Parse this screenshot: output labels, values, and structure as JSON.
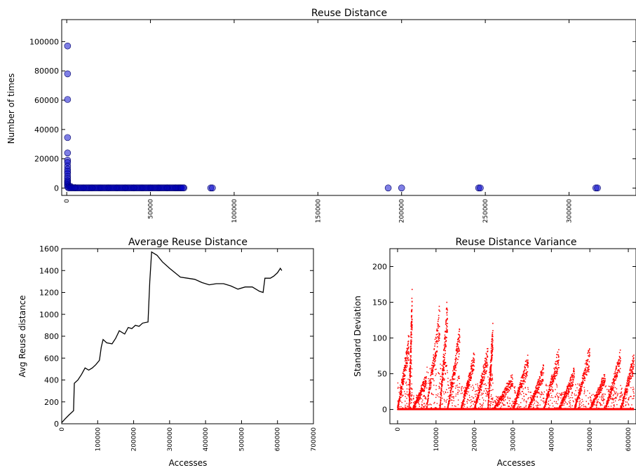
{
  "chart_data": [
    {
      "type": "scatter",
      "title": "Reuse Distance",
      "xlabel": "",
      "ylabel": "Number of times",
      "xlim": [
        -3000,
        340000
      ],
      "ylim": [
        -5000,
        115000
      ],
      "xticks": [
        0,
        50000,
        100000,
        150000,
        200000,
        250000,
        300000
      ],
      "yticks": [
        0,
        20000,
        40000,
        60000,
        80000,
        100000
      ],
      "grid": false,
      "marker_color": "#0000cc",
      "points": [
        {
          "x": 500,
          "y": 97000
        },
        {
          "x": 500,
          "y": 78000
        },
        {
          "x": 500,
          "y": 60500
        },
        {
          "x": 500,
          "y": 34500
        },
        {
          "x": 500,
          "y": 24000
        },
        {
          "x": 500,
          "y": 19000
        },
        {
          "x": 500,
          "y": 17500
        },
        {
          "x": 500,
          "y": 15000
        },
        {
          "x": 500,
          "y": 13000
        },
        {
          "x": 500,
          "y": 11500
        },
        {
          "x": 500,
          "y": 10000
        },
        {
          "x": 500,
          "y": 8000
        },
        {
          "x": 500,
          "y": 6500
        },
        {
          "x": 500,
          "y": 5000
        },
        {
          "x": 500,
          "y": 4000
        },
        {
          "x": 500,
          "y": 3000
        },
        {
          "x": 500,
          "y": 2000
        },
        {
          "x": 500,
          "y": 1000
        },
        {
          "x": 1500,
          "y": 1500
        },
        {
          "x": 2500,
          "y": 1000
        },
        {
          "x": 5000,
          "y": 300
        },
        {
          "x": 10000,
          "y": 200
        },
        {
          "x": 15000,
          "y": 200
        },
        {
          "x": 20000,
          "y": 200
        },
        {
          "x": 25000,
          "y": 200
        },
        {
          "x": 30000,
          "y": 150
        },
        {
          "x": 35000,
          "y": 150
        },
        {
          "x": 40000,
          "y": 150
        },
        {
          "x": 45000,
          "y": 150
        },
        {
          "x": 50000,
          "y": 150
        },
        {
          "x": 55000,
          "y": 150
        },
        {
          "x": 60000,
          "y": 150
        },
        {
          "x": 65000,
          "y": 150
        },
        {
          "x": 68000,
          "y": 150
        },
        {
          "x": 70000,
          "y": 150
        },
        {
          "x": 86000,
          "y": 100
        },
        {
          "x": 87000,
          "y": 100
        },
        {
          "x": 192000,
          "y": 100
        },
        {
          "x": 200000,
          "y": 100
        },
        {
          "x": 246000,
          "y": 100
        },
        {
          "x": 247000,
          "y": 100
        },
        {
          "x": 316000,
          "y": 100
        },
        {
          "x": 317000,
          "y": 100
        }
      ]
    },
    {
      "type": "line",
      "title": "Average Reuse Distance",
      "xlabel": "Accesses",
      "ylabel": "Avg Reuse distance",
      "xlim": [
        0,
        700000
      ],
      "ylim": [
        0,
        1600
      ],
      "xticks": [
        0,
        100000,
        200000,
        300000,
        400000,
        500000,
        600000,
        700000
      ],
      "yticks": [
        0,
        200,
        400,
        600,
        800,
        1000,
        1200,
        1400,
        1600
      ],
      "grid": false,
      "series": [
        {
          "color": "#000000",
          "points": [
            [
              0,
              10
            ],
            [
              8000,
              40
            ],
            [
              20000,
              80
            ],
            [
              33000,
              120
            ],
            [
              35000,
              370
            ],
            [
              45000,
              400
            ],
            [
              55000,
              450
            ],
            [
              65000,
              510
            ],
            [
              75000,
              490
            ],
            [
              85000,
              510
            ],
            [
              95000,
              540
            ],
            [
              105000,
              580
            ],
            [
              110000,
              700
            ],
            [
              115000,
              770
            ],
            [
              125000,
              740
            ],
            [
              140000,
              730
            ],
            [
              150000,
              780
            ],
            [
              160000,
              850
            ],
            [
              175000,
              820
            ],
            [
              185000,
              880
            ],
            [
              195000,
              870
            ],
            [
              205000,
              900
            ],
            [
              215000,
              890
            ],
            [
              225000,
              920
            ],
            [
              240000,
              930
            ],
            [
              245000,
              1300
            ],
            [
              250000,
              1570
            ],
            [
              265000,
              1540
            ],
            [
              280000,
              1480
            ],
            [
              300000,
              1420
            ],
            [
              315000,
              1380
            ],
            [
              330000,
              1340
            ],
            [
              350000,
              1330
            ],
            [
              370000,
              1320
            ],
            [
              390000,
              1290
            ],
            [
              410000,
              1270
            ],
            [
              430000,
              1280
            ],
            [
              450000,
              1280
            ],
            [
              470000,
              1260
            ],
            [
              490000,
              1230
            ],
            [
              510000,
              1250
            ],
            [
              530000,
              1250
            ],
            [
              550000,
              1210
            ],
            [
              560000,
              1200
            ],
            [
              565000,
              1330
            ],
            [
              580000,
              1330
            ],
            [
              590000,
              1350
            ],
            [
              600000,
              1380
            ],
            [
              608000,
              1420
            ],
            [
              612000,
              1400
            ]
          ]
        }
      ]
    },
    {
      "type": "scatter",
      "title": "Reuse Distance Variance",
      "xlabel": "Accesses",
      "ylabel": "Standard Deviation",
      "xlim": [
        -20000,
        620000
      ],
      "ylim": [
        -20,
        225
      ],
      "xticks": [
        0,
        100000,
        200000,
        300000,
        400000,
        500000,
        600000
      ],
      "yticks": [
        0,
        50,
        100,
        150,
        200
      ],
      "grid": false,
      "marker_color": "#ff0000",
      "bursts": [
        {
          "x0": 0,
          "x1": 30000,
          "ymax": 110
        },
        {
          "x0": 30000,
          "x1": 38000,
          "ymax": 180
        },
        {
          "x0": 40000,
          "x1": 75000,
          "ymax": 50
        },
        {
          "x0": 75000,
          "x1": 110000,
          "ymax": 150
        },
        {
          "x0": 110000,
          "x1": 130000,
          "ymax": 165
        },
        {
          "x0": 130000,
          "x1": 162000,
          "ymax": 120
        },
        {
          "x0": 165000,
          "x1": 200000,
          "ymax": 85
        },
        {
          "x0": 200000,
          "x1": 235000,
          "ymax": 90
        },
        {
          "x0": 235000,
          "x1": 248000,
          "ymax": 130
        },
        {
          "x0": 250000,
          "x1": 300000,
          "ymax": 50
        },
        {
          "x0": 300000,
          "x1": 340000,
          "ymax": 80
        },
        {
          "x0": 340000,
          "x1": 380000,
          "ymax": 65
        },
        {
          "x0": 380000,
          "x1": 420000,
          "ymax": 90
        },
        {
          "x0": 420000,
          "x1": 460000,
          "ymax": 60
        },
        {
          "x0": 460000,
          "x1": 500000,
          "ymax": 90
        },
        {
          "x0": 500000,
          "x1": 540000,
          "ymax": 55
        },
        {
          "x0": 540000,
          "x1": 580000,
          "ymax": 85
        },
        {
          "x0": 580000,
          "x1": 615000,
          "ymax": 80
        }
      ]
    }
  ]
}
